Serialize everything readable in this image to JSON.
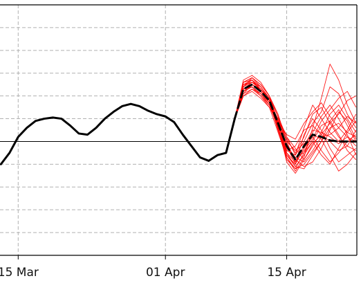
{
  "chart_data": {
    "type": "line",
    "title": "",
    "xlabel": "",
    "ylabel": "",
    "x_tick_labels": [
      {
        "label": "15 Mar",
        "day": 0
      },
      {
        "label": "01 Apr",
        "day": 17
      },
      {
        "label": "15 Apr",
        "day": 31
      }
    ],
    "xlim": [
      -2.1,
      39.1
    ],
    "ylim": [
      -5,
      6
    ],
    "y_ticks": [
      -5,
      -4,
      -3,
      -2,
      -1,
      0,
      1,
      2,
      3,
      4,
      5,
      6
    ],
    "y_tick_labels_visible": false,
    "grid": true,
    "reference_line_y": 0,
    "colors": {
      "observed": "#000000",
      "ensemble": "#ff0000",
      "ensemble_mean": "#000000",
      "grid": "#b0b0b0",
      "reference": "#000000"
    },
    "series": [
      {
        "role": "observed",
        "x": [
          -2,
          -1,
          0,
          1,
          2,
          3,
          4,
          5,
          6,
          7,
          8,
          9,
          10,
          11,
          12,
          13,
          14,
          15,
          16,
          17,
          18,
          19,
          20,
          21,
          22,
          23,
          24,
          25
        ],
        "y": [
          -1.0,
          -0.5,
          0.2,
          0.6,
          0.9,
          1.0,
          1.05,
          1.0,
          0.7,
          0.35,
          0.3,
          0.6,
          1.0,
          1.3,
          1.55,
          1.65,
          1.55,
          1.35,
          1.2,
          1.1,
          0.85,
          0.3,
          -0.2,
          -0.7,
          -0.85,
          -0.6,
          -0.5,
          1.0
        ]
      },
      {
        "role": "ensemble-mean",
        "x": [
          25,
          26,
          27,
          28,
          29,
          30,
          31,
          32,
          33,
          34,
          35,
          36,
          37,
          38,
          39
        ],
        "y": [
          1.0,
          2.3,
          2.5,
          2.2,
          1.8,
          0.8,
          -0.2,
          -0.8,
          -0.2,
          0.3,
          0.2,
          0.05,
          0.0,
          0.0,
          0.0
        ]
      }
    ],
    "ensemble_members": [
      {
        "x": [
          25,
          26,
          27,
          28,
          29,
          30,
          31,
          32,
          33,
          34,
          35,
          36,
          37,
          38,
          39
        ],
        "y": [
          1.0,
          2.6,
          2.8,
          2.5,
          2.0,
          1.2,
          0.0,
          -0.9,
          -0.2,
          0.5,
          0.4,
          0.2,
          -0.1,
          0.2,
          0.0
        ]
      },
      {
        "x": [
          25,
          26,
          27,
          28,
          29,
          30,
          31,
          32,
          33,
          34,
          35,
          36,
          37,
          38,
          39
        ],
        "y": [
          1.0,
          2.4,
          2.6,
          2.3,
          1.9,
          0.8,
          -0.5,
          -1.1,
          -0.6,
          0.0,
          0.7,
          0.9,
          0.3,
          -0.4,
          -0.8
        ]
      },
      {
        "x": [
          25,
          26,
          27,
          28,
          29,
          30,
          31,
          32,
          33,
          34,
          35,
          36,
          37,
          38,
          39
        ],
        "y": [
          1.0,
          2.2,
          2.4,
          2.1,
          1.7,
          0.6,
          -0.6,
          -1.0,
          0.3,
          1.0,
          0.5,
          -0.3,
          -0.9,
          -0.6,
          -0.3
        ]
      },
      {
        "x": [
          25,
          26,
          27,
          28,
          29,
          30,
          31,
          32,
          33,
          34,
          35,
          36,
          37,
          38,
          39
        ],
        "y": [
          1.0,
          2.0,
          2.3,
          2.0,
          1.6,
          1.0,
          0.2,
          -0.3,
          -0.8,
          -0.2,
          0.4,
          1.2,
          1.6,
          1.0,
          0.4
        ]
      },
      {
        "x": [
          25,
          26,
          27,
          28,
          29,
          30,
          31,
          32,
          33,
          34,
          35,
          36,
          37,
          38,
          39
        ],
        "y": [
          1.0,
          2.5,
          2.7,
          2.2,
          1.8,
          0.5,
          -0.8,
          -1.2,
          -1.0,
          -0.5,
          0.0,
          0.6,
          0.8,
          0.4,
          0.2
        ]
      },
      {
        "x": [
          25,
          26,
          27,
          28,
          29,
          30,
          31,
          32,
          33,
          34,
          35,
          36,
          37,
          38,
          39
        ],
        "y": [
          1.0,
          2.3,
          2.6,
          2.4,
          1.9,
          0.9,
          0.1,
          -0.5,
          0.2,
          1.2,
          1.5,
          0.8,
          0.2,
          -0.2,
          -0.4
        ]
      },
      {
        "x": [
          25,
          26,
          27,
          28,
          29,
          30,
          31,
          32,
          33,
          34,
          35,
          36,
          37,
          38,
          39
        ],
        "y": [
          1.0,
          2.1,
          2.5,
          2.3,
          1.8,
          0.7,
          -0.3,
          -0.7,
          -0.9,
          -0.4,
          0.2,
          0.3,
          0.6,
          1.1,
          0.8
        ]
      },
      {
        "x": [
          25,
          26,
          27,
          28,
          29,
          30,
          31,
          32,
          33,
          34,
          35,
          36,
          37,
          38,
          39
        ],
        "y": [
          1.0,
          2.7,
          2.9,
          2.6,
          2.0,
          1.1,
          -0.2,
          -1.0,
          -0.3,
          0.2,
          -0.4,
          -0.9,
          -0.5,
          0.0,
          0.3
        ]
      },
      {
        "x": [
          25,
          26,
          27,
          28,
          29,
          30,
          31,
          32,
          33,
          34,
          35,
          36,
          37,
          38,
          39
        ],
        "y": [
          1.0,
          2.2,
          2.4,
          2.0,
          1.5,
          0.4,
          -0.7,
          -1.3,
          -0.7,
          0.6,
          1.9,
          3.4,
          2.7,
          1.6,
          0.8
        ]
      },
      {
        "x": [
          25,
          26,
          27,
          28,
          29,
          30,
          31,
          32,
          33,
          34,
          35,
          36,
          37,
          38,
          39
        ],
        "y": [
          1.0,
          2.4,
          2.7,
          2.4,
          1.9,
          0.9,
          -0.4,
          -0.6,
          0.6,
          1.6,
          1.0,
          0.4,
          0.0,
          0.5,
          1.2
        ]
      },
      {
        "x": [
          25,
          26,
          27,
          28,
          29,
          30,
          31,
          32,
          33,
          34,
          35,
          36,
          37,
          38,
          39
        ],
        "y": [
          1.0,
          2.0,
          2.2,
          1.9,
          1.5,
          0.8,
          -0.1,
          -0.8,
          -1.1,
          -0.9,
          -0.3,
          0.5,
          1.3,
          0.9,
          0.1
        ]
      },
      {
        "x": [
          25,
          26,
          27,
          28,
          29,
          30,
          31,
          32,
          33,
          34,
          35,
          36,
          37,
          38,
          39
        ],
        "y": [
          1.0,
          2.6,
          2.7,
          2.3,
          1.8,
          0.6,
          -0.5,
          -0.9,
          -0.4,
          0.1,
          0.9,
          1.4,
          1.9,
          2.2,
          1.5
        ]
      },
      {
        "x": [
          25,
          26,
          27,
          28,
          29,
          30,
          31,
          32,
          33,
          34,
          35,
          36,
          37,
          38,
          39
        ],
        "y": [
          1.0,
          2.3,
          2.5,
          2.2,
          1.7,
          1.0,
          0.0,
          -0.4,
          -0.1,
          0.3,
          0.1,
          -0.6,
          -1.3,
          -1.0,
          -0.5
        ]
      },
      {
        "x": [
          25,
          26,
          27,
          28,
          29,
          30,
          31,
          32,
          33,
          34,
          35,
          36,
          37,
          38,
          39
        ],
        "y": [
          1.0,
          2.5,
          2.6,
          2.3,
          1.9,
          0.7,
          -0.9,
          -1.4,
          -0.8,
          -0.1,
          0.3,
          0.0,
          -0.4,
          -0.2,
          0.5
        ]
      },
      {
        "x": [
          25,
          26,
          27,
          28,
          29,
          30,
          31,
          32,
          33,
          34,
          35,
          36,
          37,
          38,
          39
        ],
        "y": [
          1.0,
          2.1,
          2.3,
          2.1,
          1.6,
          0.9,
          0.3,
          0.1,
          0.8,
          1.3,
          1.7,
          1.1,
          0.6,
          0.2,
          -0.2
        ]
      },
      {
        "x": [
          25,
          26,
          27,
          28,
          29,
          30,
          31,
          32,
          33,
          34,
          35,
          36,
          37,
          38,
          39
        ],
        "y": [
          1.0,
          2.4,
          2.8,
          2.5,
          2.0,
          0.8,
          -0.6,
          -1.1,
          -1.2,
          -0.6,
          0.0,
          0.9,
          1.4,
          0.7,
          0.0
        ]
      },
      {
        "x": [
          25,
          26,
          27,
          28,
          29,
          30,
          31,
          32,
          33,
          34,
          35,
          36,
          37,
          38,
          39
        ],
        "y": [
          1.0,
          2.2,
          2.5,
          2.2,
          1.7,
          0.5,
          -0.4,
          -0.2,
          0.5,
          0.7,
          0.3,
          0.8,
          1.2,
          1.8,
          2.0
        ]
      },
      {
        "x": [
          25,
          26,
          27,
          28,
          29,
          30,
          31,
          32,
          33,
          34,
          35,
          36,
          37,
          38,
          39
        ],
        "y": [
          1.0,
          2.5,
          2.6,
          2.3,
          1.8,
          0.9,
          -0.2,
          -0.7,
          -0.5,
          0.4,
          1.1,
          1.6,
          1.0,
          0.3,
          -0.6
        ]
      },
      {
        "x": [
          25,
          26,
          27,
          28,
          29,
          30,
          31,
          32,
          33,
          34,
          35,
          36,
          37,
          38,
          39
        ],
        "y": [
          1.0,
          2.3,
          2.4,
          2.1,
          1.6,
          0.6,
          -0.7,
          -1.2,
          -0.5,
          0.0,
          -0.6,
          -1.0,
          -0.3,
          0.4,
          0.9
        ]
      },
      {
        "x": [
          25,
          26,
          27,
          28,
          29,
          30,
          31,
          32,
          33,
          34,
          35,
          36,
          37,
          38,
          39
        ],
        "y": [
          1.0,
          2.6,
          2.8,
          2.4,
          1.9,
          1.1,
          0.2,
          -0.6,
          0.0,
          0.8,
          1.3,
          2.4,
          2.1,
          1.2,
          0.6
        ]
      }
    ]
  }
}
